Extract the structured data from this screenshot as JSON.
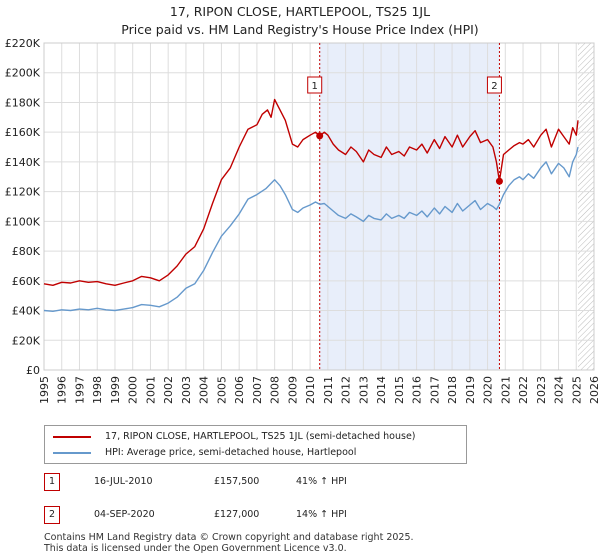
{
  "title_line1": "17, RIPON CLOSE, HARTLEPOOL, TS25 1JL",
  "title_line2": "Price paid vs. HM Land Registry's House Price Index (HPI)",
  "chart_data": {
    "type": "line",
    "title": "17, RIPON CLOSE, HARTLEPOOL, TS25 1JL — Price paid vs. HM Land Registry's House Price Index (HPI)",
    "xlabel": "",
    "ylabel": "",
    "xlim": [
      1995,
      2026
    ],
    "ylim": [
      0,
      220000
    ],
    "y_ticks": [
      0,
      20000,
      40000,
      60000,
      80000,
      100000,
      120000,
      140000,
      160000,
      180000,
      200000,
      220000
    ],
    "y_tick_labels": [
      "£0",
      "£20K",
      "£40K",
      "£60K",
      "£80K",
      "£100K",
      "£120K",
      "£140K",
      "£160K",
      "£180K",
      "£200K",
      "£220K"
    ],
    "x_ticks": [
      1995,
      1996,
      1997,
      1998,
      1999,
      2000,
      2001,
      2002,
      2003,
      2004,
      2005,
      2006,
      2007,
      2008,
      2009,
      2010,
      2011,
      2012,
      2013,
      2014,
      2015,
      2016,
      2017,
      2018,
      2019,
      2020,
      2021,
      2022,
      2023,
      2024,
      2025,
      2026
    ],
    "x_tick_labels": [
      "1995",
      "1996",
      "1997",
      "1998",
      "1999",
      "2000",
      "2001",
      "2002",
      "2003",
      "2004",
      "2005",
      "2006",
      "2007",
      "2008",
      "2009",
      "2010",
      "2011",
      "2012",
      "2013",
      "2014",
      "2015",
      "2016",
      "2017",
      "2018",
      "2019",
      "2020",
      "2021",
      "2022",
      "2023",
      "2024",
      "2025",
      "2026"
    ],
    "grid": true,
    "shaded_period": [
      2010.54,
      2020.67
    ],
    "series": [
      {
        "name": "17, RIPON CLOSE, HARTLEPOOL, TS25 1JL (semi-detached house)",
        "color": "#c00000",
        "x": [
          1995.0,
          1995.5,
          1996.0,
          1996.5,
          1997.0,
          1997.5,
          1998.0,
          1998.5,
          1999.0,
          1999.5,
          2000.0,
          2000.5,
          2001.0,
          2001.5,
          2002.0,
          2002.5,
          2003.0,
          2003.5,
          2004.0,
          2004.5,
          2005.0,
          2005.5,
          2006.0,
          2006.5,
          2007.0,
          2007.3,
          2007.6,
          2007.8,
          2008.0,
          2008.3,
          2008.6,
          2009.0,
          2009.3,
          2009.6,
          2010.0,
          2010.3,
          2010.54,
          2010.8,
          2011.0,
          2011.3,
          2011.6,
          2012.0,
          2012.3,
          2012.6,
          2013.0,
          2013.3,
          2013.6,
          2014.0,
          2014.3,
          2014.6,
          2015.0,
          2015.3,
          2015.6,
          2016.0,
          2016.3,
          2016.6,
          2017.0,
          2017.3,
          2017.6,
          2018.0,
          2018.3,
          2018.6,
          2019.0,
          2019.3,
          2019.6,
          2020.0,
          2020.3,
          2020.5,
          2020.67,
          2020.9,
          2021.2,
          2021.5,
          2021.8,
          2022.0,
          2022.3,
          2022.6,
          2023.0,
          2023.3,
          2023.6,
          2024.0,
          2024.3,
          2024.6,
          2024.8,
          2025.0,
          2025.1
        ],
        "values": [
          58000,
          57000,
          59000,
          58500,
          60000,
          59000,
          59500,
          58000,
          57000,
          58500,
          60000,
          63000,
          62000,
          60000,
          64000,
          70000,
          78000,
          83000,
          95000,
          112000,
          128000,
          136000,
          150000,
          162000,
          165000,
          172000,
          175000,
          170000,
          182000,
          175000,
          168000,
          152000,
          150000,
          155000,
          158000,
          160000,
          157500,
          160000,
          158000,
          152000,
          148000,
          145000,
          150000,
          147000,
          140000,
          148000,
          145000,
          143000,
          150000,
          145000,
          147000,
          144000,
          150000,
          148000,
          152000,
          146000,
          155000,
          149000,
          157000,
          150000,
          158000,
          150000,
          157000,
          161000,
          153000,
          155000,
          150000,
          140000,
          127000,
          145000,
          148000,
          151000,
          153000,
          152000,
          155000,
          150000,
          158000,
          162000,
          150000,
          162000,
          157000,
          152000,
          163000,
          158000,
          168000
        ]
      },
      {
        "name": "HPI: Average price, semi-detached house, Hartlepool",
        "color": "#6699cc",
        "x": [
          1995.0,
          1995.5,
          1996.0,
          1996.5,
          1997.0,
          1997.5,
          1998.0,
          1998.5,
          1999.0,
          1999.5,
          2000.0,
          2000.5,
          2001.0,
          2001.5,
          2002.0,
          2002.5,
          2003.0,
          2003.5,
          2004.0,
          2004.5,
          2005.0,
          2005.5,
          2006.0,
          2006.5,
          2007.0,
          2007.5,
          2008.0,
          2008.3,
          2008.6,
          2009.0,
          2009.3,
          2009.6,
          2010.0,
          2010.3,
          2010.54,
          2010.8,
          2011.0,
          2011.3,
          2011.6,
          2012.0,
          2012.3,
          2012.6,
          2013.0,
          2013.3,
          2013.6,
          2014.0,
          2014.3,
          2014.6,
          2015.0,
          2015.3,
          2015.6,
          2016.0,
          2016.3,
          2016.6,
          2017.0,
          2017.3,
          2017.6,
          2018.0,
          2018.3,
          2018.6,
          2019.0,
          2019.3,
          2019.6,
          2020.0,
          2020.3,
          2020.5,
          2020.67,
          2020.9,
          2021.2,
          2021.5,
          2021.8,
          2022.0,
          2022.3,
          2022.6,
          2023.0,
          2023.3,
          2023.6,
          2024.0,
          2024.3,
          2024.6,
          2024.8,
          2025.0,
          2025.1
        ],
        "values": [
          40000,
          39500,
          40500,
          40000,
          41000,
          40500,
          41500,
          40500,
          40000,
          41000,
          42000,
          44000,
          43500,
          42500,
          45000,
          49000,
          55000,
          58000,
          67000,
          79000,
          90000,
          97000,
          105000,
          115000,
          118000,
          122000,
          128000,
          124000,
          118000,
          108000,
          106000,
          109000,
          111000,
          113000,
          111500,
          112000,
          110000,
          107000,
          104000,
          102000,
          105000,
          103000,
          100000,
          104000,
          102000,
          101000,
          105000,
          102000,
          104000,
          102000,
          106000,
          104000,
          107000,
          103000,
          109000,
          105000,
          110000,
          106000,
          112000,
          107000,
          111000,
          114000,
          108000,
          112000,
          110000,
          108000,
          111500,
          118000,
          124000,
          128000,
          130000,
          128000,
          132000,
          129000,
          136000,
          140000,
          132000,
          139000,
          136000,
          130000,
          140000,
          145000,
          150000
        ]
      }
    ],
    "annotations": [
      {
        "label": "1",
        "x": 2010.54,
        "value": 157500
      },
      {
        "label": "2",
        "x": 2020.67,
        "value": 127000
      }
    ]
  },
  "legend": {
    "items": [
      {
        "label": "17, RIPON CLOSE, HARTLEPOOL, TS25 1JL (semi-detached house)",
        "color": "#c00000"
      },
      {
        "label": "HPI: Average price, semi-detached house, Hartlepool",
        "color": "#6699cc"
      }
    ]
  },
  "annotation_table": [
    {
      "num": "1",
      "date": "16-JUL-2010",
      "price": "£157,500",
      "hpi": "41% ↑ HPI"
    },
    {
      "num": "2",
      "date": "04-SEP-2020",
      "price": "£127,000",
      "hpi": "14% ↑ HPI"
    }
  ],
  "footer": {
    "line1": "Contains HM Land Registry data © Crown copyright and database right 2025.",
    "line2": "This data is licensed under the Open Government Licence v3.0."
  }
}
